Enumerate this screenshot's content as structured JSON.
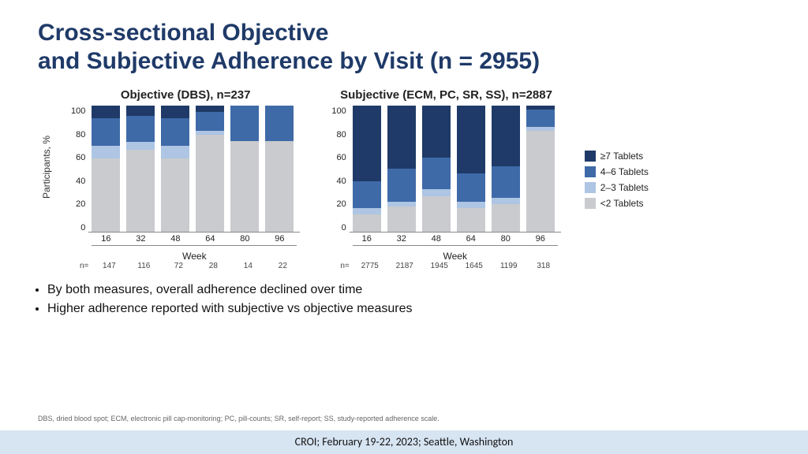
{
  "title_line1": "Cross-sectional Objective",
  "title_line2": "and Subjective Adherence by Visit (n = 2955)",
  "ylabel": "Participants, %",
  "xlabel": "Week",
  "ylim": [
    0,
    100
  ],
  "yticks": [
    0,
    20,
    40,
    60,
    80,
    100
  ],
  "weeks": [
    "16",
    "32",
    "48",
    "64",
    "80",
    "96"
  ],
  "n_prefix": "n=",
  "colors": {
    "ge7": "#1f3a68",
    "t46": "#3f6aa8",
    "t23": "#aec5e3",
    "lt2": "#c9cbce",
    "background": "#ffffff",
    "axis": "#888888"
  },
  "legend": [
    {
      "label": "≥7 Tablets",
      "key": "ge7"
    },
    {
      "label": "4–6 Tablets",
      "key": "t46"
    },
    {
      "label": "2–3 Tablets",
      "key": "t23"
    },
    {
      "label": "<2 Tablets",
      "key": "lt2"
    }
  ],
  "charts": [
    {
      "title": "Objective (DBS), n=237",
      "n": [
        "147",
        "116",
        "72",
        "28",
        "14",
        "22"
      ],
      "series": [
        {
          "lt2": 58,
          "t23": 10,
          "t46": 22,
          "ge7": 10
        },
        {
          "lt2": 65,
          "t23": 6,
          "t46": 21,
          "ge7": 8
        },
        {
          "lt2": 58,
          "t23": 10,
          "t46": 22,
          "ge7": 10
        },
        {
          "lt2": 77,
          "t23": 3,
          "t46": 15,
          "ge7": 5
        },
        {
          "lt2": 72,
          "t23": 0,
          "t46": 28,
          "ge7": 0
        },
        {
          "lt2": 72,
          "t23": 0,
          "t46": 28,
          "ge7": 0
        }
      ]
    },
    {
      "title": "Subjective (ECM, PC, SR, SS), n=2887",
      "n": [
        "2775",
        "2187",
        "1945",
        "1645",
        "1199",
        "318"
      ],
      "series": [
        {
          "lt2": 14,
          "t23": 5,
          "t46": 21,
          "ge7": 60
        },
        {
          "lt2": 20,
          "t23": 4,
          "t46": 26,
          "ge7": 50
        },
        {
          "lt2": 28,
          "t23": 6,
          "t46": 25,
          "ge7": 41
        },
        {
          "lt2": 19,
          "t23": 5,
          "t46": 22,
          "ge7": 54
        },
        {
          "lt2": 22,
          "t23": 5,
          "t46": 25,
          "ge7": 48
        },
        {
          "lt2": 80,
          "t23": 3,
          "t46": 14,
          "ge7": 3
        }
      ]
    }
  ],
  "bullets": [
    "By both measures, overall adherence declined over time",
    "Higher adherence reported with subjective vs objective measures"
  ],
  "abbrev": "DBS, dried blood spot; ECM, electronic pill cap-monitoring; PC, pill-counts; SR, self-report; SS, study-reported adherence scale.",
  "footer": "CROI; February 19-22, 2023; Seattle, Washington"
}
